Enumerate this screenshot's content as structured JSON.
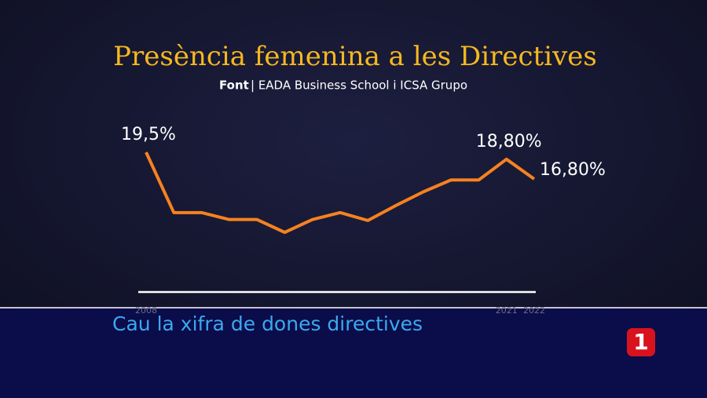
{
  "chart_data": {
    "type": "line",
    "title": "Presència femenina a les Directives",
    "source_label": "Font",
    "source": "| EADA Business School i ICSA Grupo",
    "categories": [
      "2008",
      null,
      null,
      null,
      null,
      null,
      null,
      null,
      null,
      null,
      null,
      null,
      null,
      "2021",
      "2022"
    ],
    "series": [
      {
        "name": "Presència femenina",
        "color": "#f5821f",
        "values": [
          19.5,
          13.4,
          13.4,
          12.7,
          12.7,
          11.4,
          12.7,
          13.4,
          12.6,
          14.1,
          15.5,
          16.7,
          16.7,
          18.8,
          16.8
        ],
        "value_labels": [
          "19,5%",
          null,
          null,
          null,
          null,
          null,
          null,
          null,
          null,
          null,
          null,
          null,
          null,
          "18,80%",
          "16,80%"
        ]
      }
    ]
  },
  "ticker": "Cau la xifra de dones directives",
  "logo": "1"
}
